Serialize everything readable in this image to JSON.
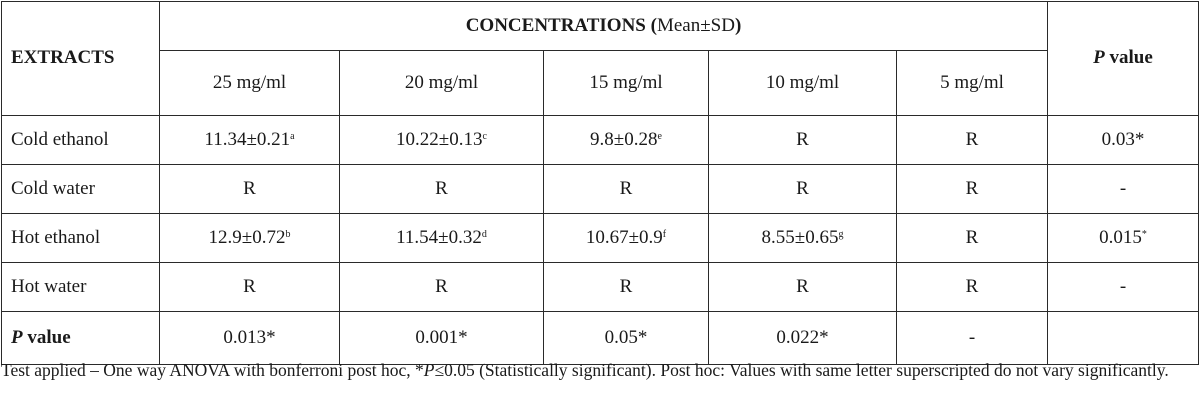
{
  "header": {
    "extracts_label": "EXTRACTS",
    "concentrations_label": "CONCENTRATIONS (",
    "concentrations_sub": "Mean±SD",
    "concentrations_close": ")",
    "pvalue_p": "P",
    "pvalue_rest": " value",
    "columns": [
      "25 mg/ml",
      "20 mg/ml",
      "15 mg/ml",
      "10 mg/ml",
      "5 mg/ml"
    ]
  },
  "rows": [
    {
      "label": "Cold ethanol",
      "cells": [
        {
          "v": "11.34±0.21",
          "sup": "a"
        },
        {
          "v": "10.22±0.13",
          "sup": "c"
        },
        {
          "v": "9.8±0.28",
          "sup": "e"
        },
        {
          "v": "R",
          "sup": ""
        },
        {
          "v": "R",
          "sup": ""
        }
      ],
      "p": {
        "v": "0.03*",
        "sup": ""
      }
    },
    {
      "label": "Cold water",
      "cells": [
        {
          "v": "R",
          "sup": ""
        },
        {
          "v": "R",
          "sup": ""
        },
        {
          "v": "R",
          "sup": ""
        },
        {
          "v": "R",
          "sup": ""
        },
        {
          "v": "R",
          "sup": ""
        }
      ],
      "p": {
        "v": "-",
        "sup": ""
      }
    },
    {
      "label": "Hot ethanol",
      "cells": [
        {
          "v": "12.9±0.72",
          "sup": "b"
        },
        {
          "v": "11.54±0.32",
          "sup": "d"
        },
        {
          "v": "10.67±0.9",
          "sup": "f"
        },
        {
          "v": "8.55±0.65",
          "sup": "g"
        },
        {
          "v": "R",
          "sup": ""
        }
      ],
      "p": {
        "v": "0.015",
        "sup": "*"
      }
    },
    {
      "label": "Hot water",
      "cells": [
        {
          "v": "R",
          "sup": ""
        },
        {
          "v": "R",
          "sup": ""
        },
        {
          "v": "R",
          "sup": ""
        },
        {
          "v": "R",
          "sup": ""
        },
        {
          "v": "R",
          "sup": ""
        }
      ],
      "p": {
        "v": "-",
        "sup": ""
      }
    }
  ],
  "pvalue_row": {
    "label_p": "P",
    "label_rest": " value",
    "cells": [
      "0.013*",
      "0.001*",
      "0.05*",
      "0.022*",
      "-"
    ],
    "p": ""
  },
  "footnote": {
    "part1": "Test applied – One way ANOVA with bonferroni post hoc, *",
    "p": "P",
    "part2": "≤0.05 (Statistically significant). Post hoc: Values with same letter superscripted do not vary significantly."
  }
}
